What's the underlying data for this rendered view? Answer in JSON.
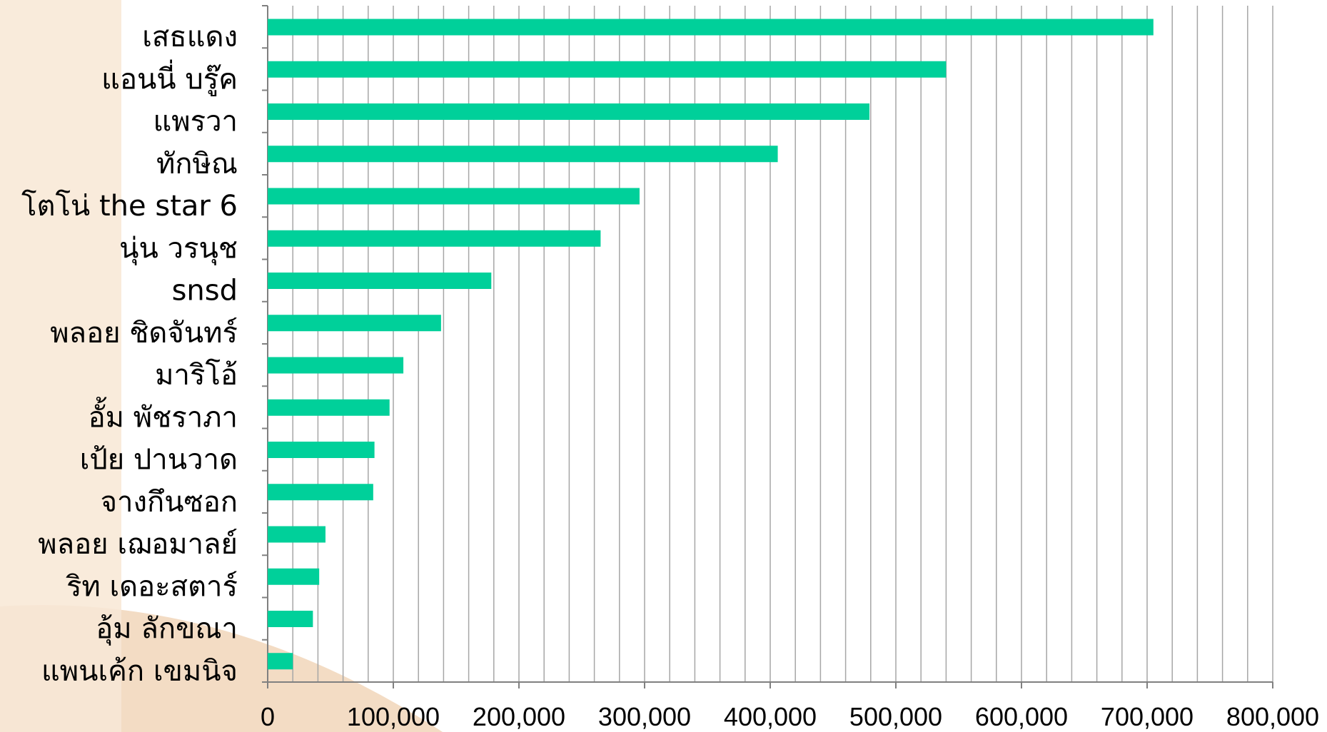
{
  "chart_data": {
    "type": "bar",
    "orientation": "horizontal",
    "title": "",
    "xlabel": "",
    "ylabel": "",
    "categories": [
      "เสธแดง",
      "แอนนี่ บรู๊ค",
      "แพรวา",
      "ทักษิณ",
      "โตโน่ the star 6",
      "นุ่น วรนุช",
      "snsd",
      "พลอย ชิดจันทร์",
      "มาริโอ้",
      "อั้ม พัชราภา",
      "เป้ย ปานวาด",
      "จางกึนซอก",
      "พลอย เฌอมาลย์",
      "ริท เดอะสตาร์",
      "อุ้ม ลักขณา",
      "แพนเค้ก เขมนิจ"
    ],
    "values": [
      705000,
      540000,
      479000,
      406000,
      296000,
      265000,
      178000,
      138000,
      108000,
      97000,
      85000,
      84000,
      46000,
      41000,
      36000,
      20000
    ],
    "xlim": [
      0,
      800000
    ],
    "x_ticks": [
      "0",
      "100,000",
      "200,000",
      "300,000",
      "400,000",
      "500,000",
      "600,000",
      "700,000",
      "800,000"
    ],
    "grid": true,
    "bar_color": "#00D09A",
    "gridline_color": "#A6A6A6"
  },
  "background": {
    "watermark_color": "#F5E3CC"
  }
}
